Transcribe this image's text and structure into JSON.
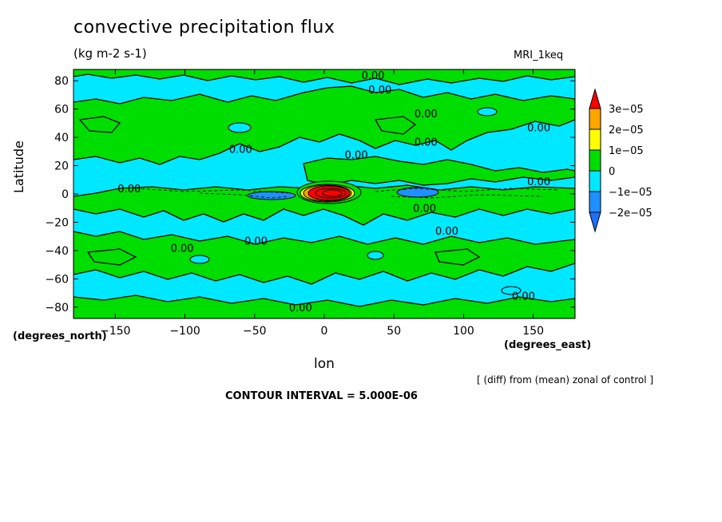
{
  "chart_data": {
    "type": "heatmap",
    "title": "convective precipitation flux",
    "subtitle": "(kg m-2 s-1)",
    "model_label": "MRI_1keq",
    "xlabel": "lon",
    "ylabel": "Latitude",
    "x_units": "(degrees_east)",
    "y_units": "(degrees_north)",
    "xlim": [
      -180,
      180
    ],
    "ylim": [
      -88,
      88
    ],
    "x_ticks": [
      -150,
      -100,
      -50,
      0,
      50,
      100,
      150
    ],
    "y_ticks": [
      -80,
      -60,
      -40,
      -20,
      0,
      20,
      40,
      60,
      80
    ],
    "x_tick_labels": [
      "−150",
      "−100",
      "−50",
      "0",
      "50",
      "100",
      "150"
    ],
    "y_tick_labels": [
      "−80",
      "−60",
      "−40",
      "−20",
      "0",
      "20",
      "40",
      "60",
      "80"
    ],
    "background_level": "0 to -1e-05",
    "colorbar": {
      "labels": [
        "3e−05",
        "2e−05",
        "1e−05",
        "0",
        "−1e−05",
        "−2e−05"
      ],
      "colors": [
        "#ff0000",
        "#ffa500",
        "#ffff00",
        "#00dd00",
        "#00e8ff",
        "#1e90ff",
        "#1e6fff"
      ]
    },
    "contour_labels": [
      {
        "text": "0.00",
        "lon": 35,
        "lat": 84
      },
      {
        "text": "0.00",
        "lon": 40,
        "lat": 74
      },
      {
        "text": "0.00",
        "lon": 73,
        "lat": 57
      },
      {
        "text": "0.00",
        "lon": 154,
        "lat": 47
      },
      {
        "text": "0.00",
        "lon": -60,
        "lat": 32
      },
      {
        "text": "0.00",
        "lon": 23,
        "lat": 28
      },
      {
        "text": "0.00",
        "lon": 73,
        "lat": 37
      },
      {
        "text": "0.00",
        "lon": 154,
        "lat": 9
      },
      {
        "text": "0.00",
        "lon": -140,
        "lat": 4
      },
      {
        "text": "0.00",
        "lon": 72,
        "lat": -10
      },
      {
        "text": "0.00",
        "lon": 88,
        "lat": -26
      },
      {
        "text": "0.00",
        "lon": -49,
        "lat": -33
      },
      {
        "text": "0.00",
        "lon": -102,
        "lat": -38
      },
      {
        "text": "0.00",
        "lon": 143,
        "lat": -72
      },
      {
        "text": "0.00",
        "lon": -17,
        "lat": -80
      }
    ],
    "anomaly_centers": [
      {
        "lon": 5,
        "lat": 0,
        "value_range": "1e-05 to 3e-05+",
        "description": "strong positive center"
      },
      {
        "lon": 65,
        "lat": 0,
        "value_range": "-1e-05 to -2e-05"
      },
      {
        "lon": -40,
        "lat": -3,
        "value_range": "-1e-05 to -2e-05"
      }
    ]
  },
  "footer": {
    "note": "[ (diff) from (mean) zonal of control ]",
    "contour_interval": "CONTOUR INTERVAL = 5.000E-06"
  }
}
